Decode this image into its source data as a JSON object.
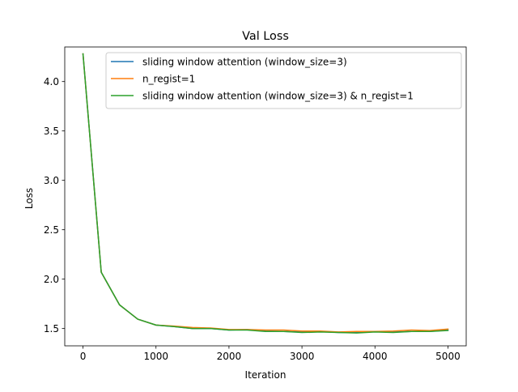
{
  "chart_data": {
    "type": "line",
    "title": "Val Loss",
    "xlabel": "Iteration",
    "ylabel": "Loss",
    "xlim": [
      -250,
      5250
    ],
    "ylim": [
      1.325,
      4.35
    ],
    "xticks": [
      0,
      1000,
      2000,
      3000,
      4000,
      5000
    ],
    "xtick_labels": [
      "0",
      "1000",
      "2000",
      "3000",
      "4000",
      "5000"
    ],
    "yticks": [
      1.5,
      2.0,
      2.5,
      3.0,
      3.5,
      4.0
    ],
    "ytick_labels": [
      "1.5",
      "2.0",
      "2.5",
      "3.0",
      "3.5",
      "4.0"
    ],
    "grid": false,
    "legend_position": "upper-right",
    "x": [
      0,
      250,
      500,
      750,
      1000,
      1250,
      1500,
      1750,
      2000,
      2250,
      2500,
      2750,
      3000,
      3250,
      3500,
      3750,
      4000,
      4250,
      4500,
      4750,
      5000
    ],
    "series": [
      {
        "name": "sliding window attention (window_size=3)",
        "color": "#1f77b4",
        "values": [
          4.28,
          2.07,
          1.74,
          1.595,
          1.535,
          1.52,
          1.5,
          1.5,
          1.485,
          1.49,
          1.475,
          1.47,
          1.465,
          1.47,
          1.46,
          1.46,
          1.47,
          1.465,
          1.47,
          1.47,
          1.485
        ]
      },
      {
        "name": "n_regist=1",
        "color": "#ff7f0e",
        "values": [
          4.28,
          2.07,
          1.74,
          1.595,
          1.535,
          1.525,
          1.51,
          1.505,
          1.49,
          1.49,
          1.485,
          1.485,
          1.475,
          1.475,
          1.465,
          1.47,
          1.47,
          1.475,
          1.485,
          1.48,
          1.495
        ]
      },
      {
        "name": "sliding window attention (window_size=3) & n_regist=1",
        "color": "#2ca02c",
        "values": [
          4.28,
          2.07,
          1.74,
          1.595,
          1.535,
          1.52,
          1.5,
          1.5,
          1.485,
          1.485,
          1.47,
          1.47,
          1.46,
          1.465,
          1.46,
          1.455,
          1.465,
          1.46,
          1.47,
          1.47,
          1.48
        ]
      }
    ]
  }
}
